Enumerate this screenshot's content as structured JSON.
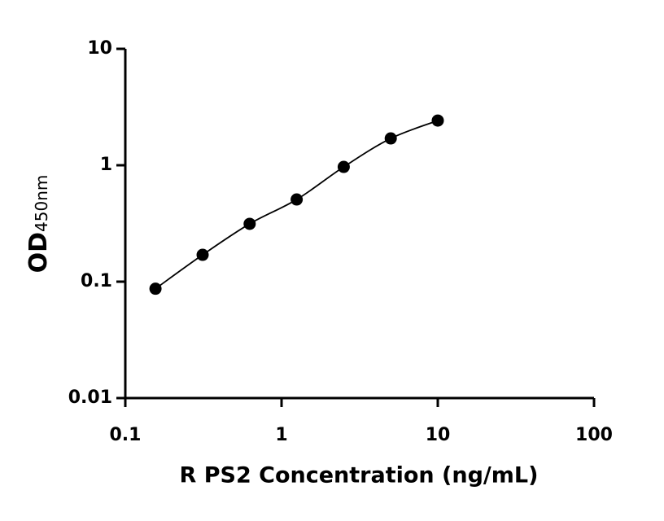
{
  "chart_data": {
    "type": "scatter",
    "xlabel": "R PS2 Concentration (ng/mL)",
    "ylabel": {
      "main": "OD",
      "sub": "450nm"
    },
    "x": [
      0.156,
      0.3125,
      0.625,
      1.25,
      2.5,
      5,
      10
    ],
    "series": [
      {
        "values": [
          0.087,
          0.17,
          0.314,
          0.508,
          0.968,
          1.7,
          2.42
        ],
        "color": "#000000"
      }
    ],
    "xlim": [
      0.1,
      100
    ],
    "ylim": [
      0.01,
      10
    ],
    "xticks": [
      0.1,
      1,
      10,
      100
    ],
    "yticks": [
      0.01,
      0.1,
      1,
      10
    ],
    "xscale": "log",
    "yscale": "log",
    "fit_curve": true
  }
}
